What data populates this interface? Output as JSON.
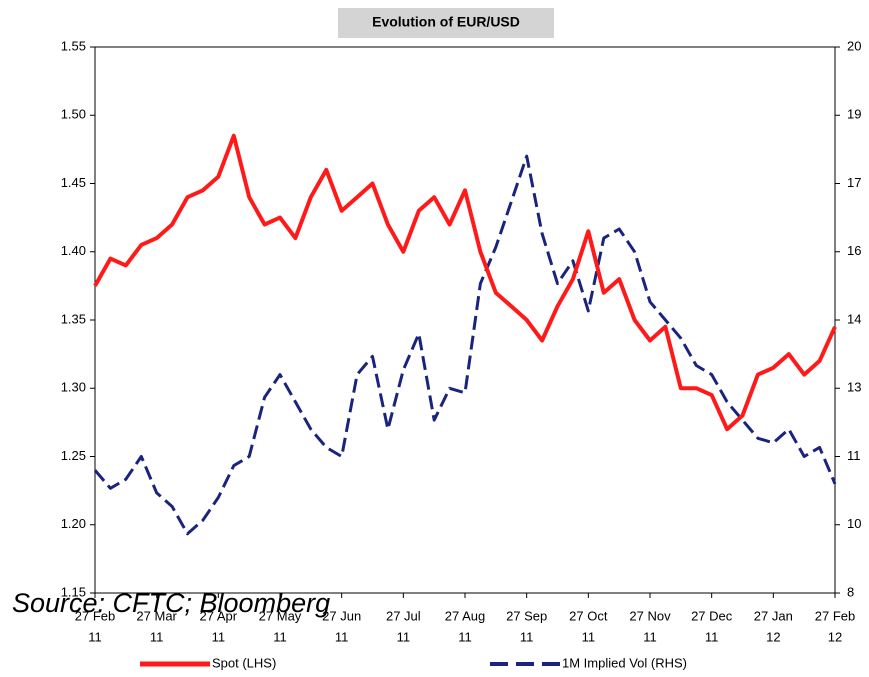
{
  "chart_data": {
    "type": "line",
    "title": "Evolution of EUR/USD",
    "source": "Source: CFTC; Bloomberg",
    "categories": [
      "27 Feb",
      null,
      null,
      null,
      "27 Mar",
      null,
      null,
      null,
      "27 Apr",
      null,
      null,
      null,
      "27 May",
      null,
      null,
      null,
      "27 Jun",
      null,
      null,
      null,
      "27 Jul",
      null,
      null,
      null,
      "27 Aug",
      null,
      null,
      null,
      "27 Sep",
      null,
      null,
      null,
      "27 Oct",
      null,
      null,
      null,
      "27 Nov",
      null,
      null,
      null,
      "27 Dec",
      null,
      null,
      null,
      "27 Jan",
      null,
      null,
      null,
      "27 Feb"
    ],
    "category_years": [
      "11",
      null,
      null,
      null,
      "11",
      null,
      null,
      null,
      "11",
      null,
      null,
      null,
      "11",
      null,
      null,
      null,
      "11",
      null,
      null,
      null,
      "11",
      null,
      null,
      null,
      "11",
      null,
      null,
      null,
      "11",
      null,
      null,
      null,
      "11",
      null,
      null,
      null,
      "11",
      null,
      null,
      null,
      "11",
      null,
      null,
      null,
      "12",
      null,
      null,
      null,
      "12"
    ],
    "ylim": [
      1.15,
      1.55
    ],
    "yticks": [
      1.15,
      {
        "value": 1.2,
        "label": "1.20"
      },
      1.25,
      {
        "value": 1.3,
        "label": "1.30"
      },
      1.35,
      {
        "value": 1.4,
        "label": "1.40"
      },
      1.45,
      {
        "value": 1.5,
        "label": "1.50"
      },
      1.55
    ],
    "y2lim": [
      8,
      20
    ],
    "y2ticks": [
      8,
      {
        "value": 9.5,
        "label": "10"
      },
      11,
      {
        "value": 12.5,
        "label": "13"
      },
      14,
      {
        "value": 15.5,
        "label": "16"
      },
      17,
      {
        "value": 18.5,
        "label": "19"
      },
      20
    ],
    "grid": false,
    "legend": "bottom",
    "series": [
      {
        "name": "Spot (LHS)",
        "color": "#ff1a1a",
        "dashed": false,
        "values": [
          1.375,
          1.395,
          1.39,
          1.405,
          1.41,
          1.42,
          1.44,
          1.445,
          1.455,
          1.485,
          1.44,
          1.42,
          1.425,
          1.41,
          1.44,
          1.46,
          1.43,
          1.44,
          1.45,
          1.42,
          1.4,
          1.43,
          1.44,
          1.42,
          1.445,
          1.4,
          1.37,
          1.36,
          1.35,
          1.335,
          1.36,
          1.38,
          1.415,
          1.37,
          1.38,
          1.35,
          1.335,
          1.345,
          1.3,
          1.3,
          1.295,
          1.27,
          1.28,
          1.31,
          1.315,
          1.325,
          1.31,
          1.32,
          1.345
        ]
      },
      {
        "name": "1M Implied Vol (RHS)",
        "color": "#1a237e",
        "dashed": true,
        "axis": "y2",
        "values": [
          10.7,
          10.3,
          10.5,
          11.0,
          10.2,
          9.9,
          9.3,
          9.6,
          10.1,
          10.8,
          11.0,
          12.3,
          12.8,
          12.2,
          11.6,
          11.2,
          11.0,
          12.8,
          13.2,
          11.6,
          12.9,
          13.7,
          11.8,
          12.5,
          12.4,
          14.8,
          15.6,
          16.6,
          17.6,
          15.9,
          14.8,
          15.3,
          14.2,
          15.8,
          16.0,
          15.5,
          14.4,
          14.0,
          13.6,
          13.0,
          12.8,
          12.2,
          11.8,
          11.4,
          11.3,
          11.6,
          11.0,
          11.2,
          10.4
        ]
      }
    ]
  }
}
